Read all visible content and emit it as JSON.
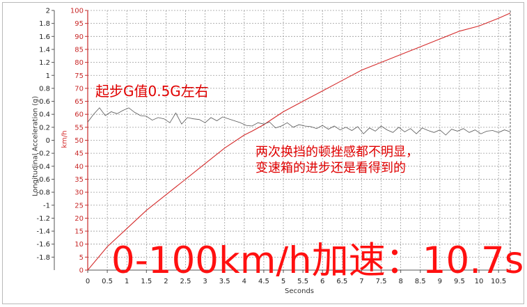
{
  "chart_data": {
    "type": "line",
    "title": "",
    "xlabel": "Seconds",
    "ylabel_left": "Longitudinal Acceleration (g)",
    "ylabel_right": "km/h",
    "xlim": [
      0,
      10.8
    ],
    "ylim_left": [
      -2,
      2
    ],
    "ylim_right": [
      0,
      100
    ],
    "grid": true,
    "x_ticks": [
      "0",
      "0.5",
      "1",
      "1.5",
      "2",
      "2.5",
      "3",
      "3.5",
      "4",
      "4.5",
      "5",
      "5.5",
      "6",
      "6.5",
      "7",
      "7.5",
      "8",
      "8.5",
      "9",
      "9.5",
      "10",
      "10.5"
    ],
    "y_ticks_left": [
      "2",
      "1.8",
      "1.6",
      "1.4",
      "1.2",
      "1",
      "0.8",
      "0.6",
      "0.4",
      "0.2",
      "0",
      "-0.2",
      "-0.4",
      "-0.6",
      "-0.8",
      "-1",
      "-1.2",
      "-1.4",
      "-1.6",
      "-1.8"
    ],
    "y_ticks_right": [
      "100",
      "95",
      "90",
      "85",
      "80",
      "75",
      "70",
      "65",
      "60",
      "55",
      "50",
      "45",
      "40",
      "35",
      "30",
      "25",
      "20",
      "15",
      "10",
      "5",
      "0"
    ],
    "series": [
      {
        "axis": "right",
        "color": "#d42a2a",
        "x": [
          0,
          0.5,
          1,
          1.5,
          2,
          2.5,
          3,
          3.5,
          4,
          4.2,
          4.5,
          5,
          5.5,
          6,
          6.5,
          7,
          7.5,
          8,
          8.5,
          9,
          9.5,
          10,
          10.5,
          10.8
        ],
        "values": [
          0,
          9,
          16,
          23,
          29,
          35,
          41,
          47,
          52,
          53.5,
          56,
          61,
          65,
          69,
          73,
          77,
          80,
          83,
          86,
          89,
          92,
          94,
          97,
          99
        ]
      },
      {
        "axis": "left",
        "color": "#555555",
        "x": [
          0,
          0.15,
          0.3,
          0.45,
          0.6,
          0.75,
          0.9,
          1.05,
          1.2,
          1.35,
          1.5,
          1.65,
          1.8,
          1.95,
          2.1,
          2.25,
          2.4,
          2.55,
          2.7,
          2.85,
          3.0,
          3.15,
          3.3,
          3.45,
          3.6,
          3.75,
          3.9,
          4.05,
          4.2,
          4.35,
          4.5,
          4.65,
          4.8,
          4.95,
          5.1,
          5.25,
          5.4,
          5.55,
          5.7,
          5.85,
          6.0,
          6.15,
          6.3,
          6.45,
          6.6,
          6.75,
          6.9,
          7.05,
          7.2,
          7.35,
          7.5,
          7.65,
          7.8,
          7.95,
          8.1,
          8.25,
          8.4,
          8.55,
          8.7,
          8.85,
          9.0,
          9.15,
          9.3,
          9.45,
          9.6,
          9.75,
          9.9,
          10.05,
          10.2,
          10.35,
          10.5,
          10.65,
          10.8
        ],
        "values": [
          0.28,
          0.4,
          0.5,
          0.38,
          0.44,
          0.41,
          0.46,
          0.5,
          0.43,
          0.38,
          0.37,
          0.31,
          0.35,
          0.33,
          0.27,
          0.42,
          0.25,
          0.35,
          0.33,
          0.32,
          0.27,
          0.35,
          0.3,
          0.36,
          0.33,
          0.3,
          0.27,
          0.23,
          0.22,
          0.27,
          0.25,
          0.28,
          0.19,
          0.22,
          0.27,
          0.2,
          0.24,
          0.22,
          0.21,
          0.18,
          0.23,
          0.17,
          0.22,
          0.16,
          0.2,
          0.15,
          0.21,
          0.1,
          0.19,
          0.14,
          0.22,
          0.16,
          0.12,
          0.2,
          0.13,
          0.18,
          0.1,
          0.19,
          0.15,
          0.12,
          0.16,
          0.08,
          0.17,
          0.14,
          0.18,
          0.12,
          0.16,
          0.1,
          0.14,
          0.15,
          0.12,
          0.16,
          0.13
        ]
      }
    ]
  },
  "annotations": {
    "launch": "起步G值0.5G左右",
    "shift_line1": "两次换挡的顿挫感都不明显，",
    "shift_line2": "变速箱的进步还是看得到的",
    "result": "0-100km/h加速：10.7s"
  }
}
